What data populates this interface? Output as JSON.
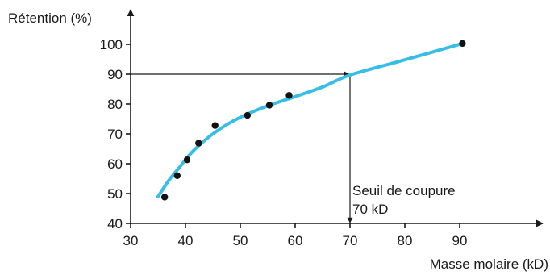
{
  "chart_data": {
    "type": "scatter",
    "title": "",
    "ylabel": "Rétention (%)",
    "xlabel": "Masse molaire (kD)",
    "xlim": [
      30,
      100
    ],
    "ylim": [
      40,
      105
    ],
    "x_ticks": [
      30,
      40,
      50,
      60,
      70,
      80,
      90
    ],
    "y_ticks": [
      40,
      50,
      60,
      70,
      80,
      90,
      100
    ],
    "grid": false,
    "points": [
      {
        "x": 36.2,
        "y": 48.8
      },
      {
        "x": 38.5,
        "y": 56.0
      },
      {
        "x": 40.3,
        "y": 61.3
      },
      {
        "x": 42.4,
        "y": 66.9
      },
      {
        "x": 45.4,
        "y": 72.8
      },
      {
        "x": 51.3,
        "y": 76.2
      },
      {
        "x": 55.3,
        "y": 79.6
      },
      {
        "x": 58.9,
        "y": 82.9
      },
      {
        "x": 90.5,
        "y": 100.3
      }
    ],
    "fit_curve": {
      "color": "#38bde8",
      "points": [
        {
          "x": 35,
          "y": 49
        },
        {
          "x": 37,
          "y": 54.5
        },
        {
          "x": 39,
          "y": 59
        },
        {
          "x": 41,
          "y": 63.5
        },
        {
          "x": 43,
          "y": 67
        },
        {
          "x": 45,
          "y": 70
        },
        {
          "x": 48,
          "y": 73.6
        },
        {
          "x": 51,
          "y": 76.4
        },
        {
          "x": 55,
          "y": 79.4
        },
        {
          "x": 60,
          "y": 82.5
        },
        {
          "x": 65,
          "y": 85.7
        },
        {
          "x": 70,
          "y": 89.7
        },
        {
          "x": 80,
          "y": 94.8
        },
        {
          "x": 90.5,
          "y": 100.3
        }
      ]
    },
    "cutoff": {
      "x": 70,
      "y": 90
    },
    "annotations": [
      "Seuil de coupure",
      "70 kD"
    ]
  }
}
